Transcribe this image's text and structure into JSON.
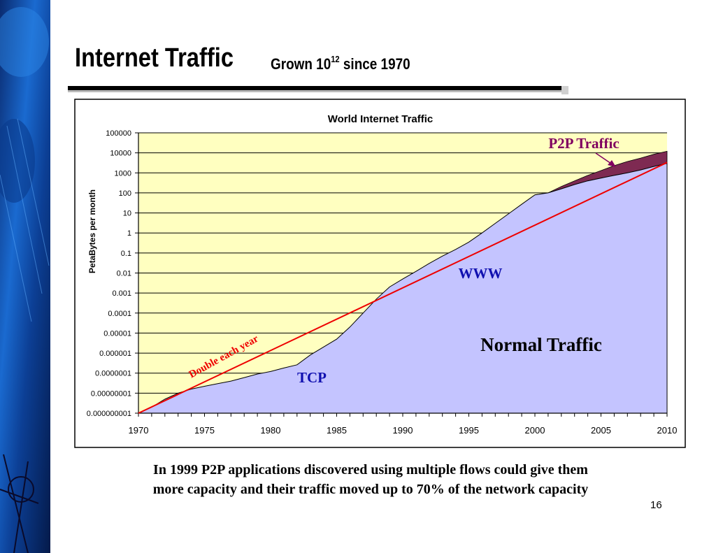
{
  "slide": {
    "title": "Internet Traffic",
    "subtitle_prefix": "Grown 10",
    "subtitle_exp": "12",
    "subtitle_suffix": " since 1970",
    "caption_line1": "In 1999 P2P applications discovered using multiple flows could give them",
    "caption_line2": "more capacity and their traffic moved up to 70% of the network capacity",
    "page_number": "16"
  },
  "colors": {
    "plot_bg": "#ffffc0",
    "normal_fill": "#c4c4ff",
    "p2p_fill": "#7e2a52",
    "trend_line": "#ee0000",
    "label_blue": "#1010b0",
    "label_p2p": "#800060"
  },
  "chart_data": {
    "type": "area",
    "title": "World Internet Traffic",
    "xlabel": "",
    "ylabel": "PetaBytes per month",
    "y_scale": "log",
    "xlim": [
      1970,
      2010
    ],
    "ylim": [
      1e-09,
      100000
    ],
    "grid": true,
    "x_ticks": [
      "1970",
      "1975",
      "1980",
      "1985",
      "1990",
      "1995",
      "2000",
      "2005",
      "2010"
    ],
    "y_ticks": [
      "100000",
      "10000",
      "1000",
      "100",
      "10",
      "1",
      "0.1",
      "0.01",
      "0.001",
      "0.0001",
      "0.00001",
      "0.000001",
      "0.0000001",
      "0.00000001",
      "0.000000001"
    ],
    "series": [
      {
        "name": "Normal Traffic",
        "x": [
          1970,
          1971,
          1972,
          1973,
          1974,
          1975,
          1976,
          1977,
          1978,
          1979,
          1980,
          1981,
          1982,
          1983,
          1984,
          1985,
          1986,
          1987,
          1988,
          1989,
          1990,
          1991,
          1992,
          1993,
          1994,
          1995,
          1996,
          1997,
          1998,
          1999,
          2000,
          2001,
          2002,
          2003,
          2004,
          2005,
          2006,
          2007,
          2008,
          2009,
          2010
        ],
        "values": [
          1e-09,
          2e-09,
          5e-09,
          1e-08,
          1.6e-08,
          2.2e-08,
          3e-08,
          4e-08,
          6e-08,
          9e-08,
          1.2e-07,
          1.8e-07,
          2.6e-07,
          8e-07,
          2e-06,
          5e-06,
          2e-05,
          0.0001,
          0.0005,
          0.002,
          0.005,
          0.012,
          0.03,
          0.07,
          0.15,
          0.35,
          1,
          3,
          9,
          27,
          80,
          100,
          160,
          260,
          400,
          550,
          750,
          1000,
          1400,
          2100,
          3000
        ]
      },
      {
        "name": "P2P Traffic",
        "x": [
          2000,
          2001,
          2002,
          2003,
          2004,
          2005,
          2006,
          2007,
          2008,
          2009,
          2010
        ],
        "values": [
          70,
          100,
          210,
          400,
          750,
          1300,
          2300,
          3700,
          5500,
          8500,
          12000
        ]
      },
      {
        "name": "Double each year",
        "x": [
          1970,
          2010
        ],
        "values": [
          1e-09,
          3300
        ]
      }
    ],
    "annotations": [
      "P2P Traffic",
      "WWW",
      "Normal Traffic",
      "TCP",
      "Double each year"
    ]
  }
}
